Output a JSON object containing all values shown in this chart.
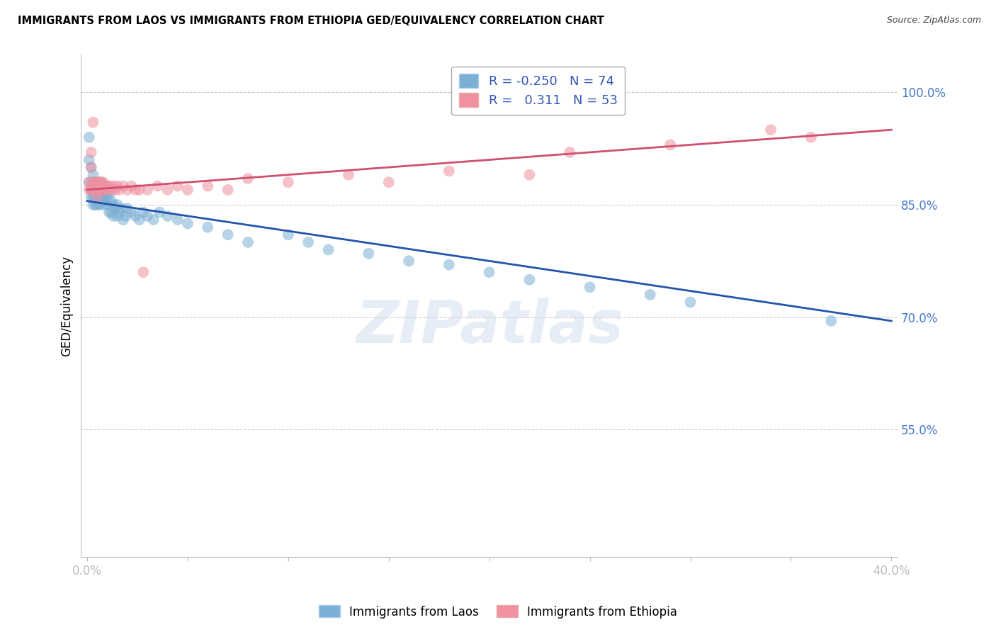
{
  "title": "IMMIGRANTS FROM LAOS VS IMMIGRANTS FROM ETHIOPIA GED/EQUIVALENCY CORRELATION CHART",
  "source": "Source: ZipAtlas.com",
  "ylabel": "GED/Equivalency",
  "ylim": [
    0.38,
    1.05
  ],
  "xlim": [
    -0.003,
    0.403
  ],
  "yticks": [
    0.55,
    0.7,
    0.85,
    1.0
  ],
  "ytick_labels": [
    "55.0%",
    "70.0%",
    "85.0%",
    "100.0%"
  ],
  "laos_color": "#7bafd4",
  "ethiopia_color": "#f090a0",
  "laos_line_color": "#2255aa",
  "ethiopia_line_color": "#d05070",
  "laos_R": -0.25,
  "laos_N": 74,
  "ethiopia_R": 0.311,
  "ethiopia_N": 53,
  "background_color": "#ffffff",
  "watermark": "ZIPatlas",
  "laos_x": [
    0.001,
    0.001,
    0.001,
    0.002,
    0.002,
    0.002,
    0.002,
    0.003,
    0.003,
    0.003,
    0.003,
    0.003,
    0.004,
    0.004,
    0.004,
    0.004,
    0.005,
    0.005,
    0.005,
    0.005,
    0.005,
    0.006,
    0.006,
    0.006,
    0.007,
    0.007,
    0.007,
    0.008,
    0.008,
    0.008,
    0.009,
    0.009,
    0.01,
    0.01,
    0.01,
    0.011,
    0.011,
    0.012,
    0.012,
    0.013,
    0.013,
    0.014,
    0.015,
    0.015,
    0.016,
    0.017,
    0.018,
    0.019,
    0.02,
    0.022,
    0.024,
    0.026,
    0.028,
    0.03,
    0.033,
    0.036,
    0.04,
    0.045,
    0.05,
    0.06,
    0.07,
    0.08,
    0.1,
    0.11,
    0.12,
    0.14,
    0.16,
    0.18,
    0.2,
    0.22,
    0.25,
    0.28,
    0.3,
    0.37
  ],
  "laos_y": [
    0.91,
    0.88,
    0.94,
    0.87,
    0.86,
    0.9,
    0.875,
    0.87,
    0.86,
    0.89,
    0.85,
    0.88,
    0.87,
    0.86,
    0.88,
    0.85,
    0.88,
    0.87,
    0.86,
    0.85,
    0.875,
    0.87,
    0.86,
    0.85,
    0.88,
    0.87,
    0.855,
    0.87,
    0.86,
    0.85,
    0.865,
    0.855,
    0.87,
    0.86,
    0.85,
    0.865,
    0.84,
    0.855,
    0.84,
    0.85,
    0.835,
    0.845,
    0.85,
    0.835,
    0.84,
    0.845,
    0.83,
    0.835,
    0.845,
    0.84,
    0.835,
    0.83,
    0.84,
    0.835,
    0.83,
    0.84,
    0.835,
    0.83,
    0.825,
    0.82,
    0.81,
    0.8,
    0.81,
    0.8,
    0.79,
    0.785,
    0.775,
    0.77,
    0.76,
    0.75,
    0.74,
    0.73,
    0.72,
    0.695
  ],
  "ethiopia_x": [
    0.001,
    0.001,
    0.002,
    0.002,
    0.002,
    0.003,
    0.003,
    0.003,
    0.004,
    0.004,
    0.004,
    0.005,
    0.005,
    0.005,
    0.006,
    0.006,
    0.007,
    0.007,
    0.008,
    0.008,
    0.009,
    0.009,
    0.01,
    0.01,
    0.011,
    0.012,
    0.013,
    0.014,
    0.015,
    0.016,
    0.018,
    0.02,
    0.022,
    0.024,
    0.026,
    0.028,
    0.03,
    0.035,
    0.04,
    0.045,
    0.05,
    0.06,
    0.07,
    0.08,
    0.1,
    0.13,
    0.15,
    0.18,
    0.22,
    0.24,
    0.29,
    0.34,
    0.36
  ],
  "ethiopia_y": [
    0.88,
    0.87,
    0.92,
    0.9,
    0.87,
    0.88,
    0.87,
    0.96,
    0.87,
    0.88,
    0.87,
    0.88,
    0.87,
    0.86,
    0.88,
    0.87,
    0.88,
    0.87,
    0.88,
    0.87,
    0.875,
    0.87,
    0.875,
    0.87,
    0.875,
    0.87,
    0.875,
    0.87,
    0.875,
    0.87,
    0.875,
    0.87,
    0.875,
    0.87,
    0.87,
    0.76,
    0.87,
    0.875,
    0.87,
    0.875,
    0.87,
    0.875,
    0.87,
    0.885,
    0.88,
    0.89,
    0.88,
    0.895,
    0.89,
    0.92,
    0.93,
    0.95,
    0.94
  ]
}
